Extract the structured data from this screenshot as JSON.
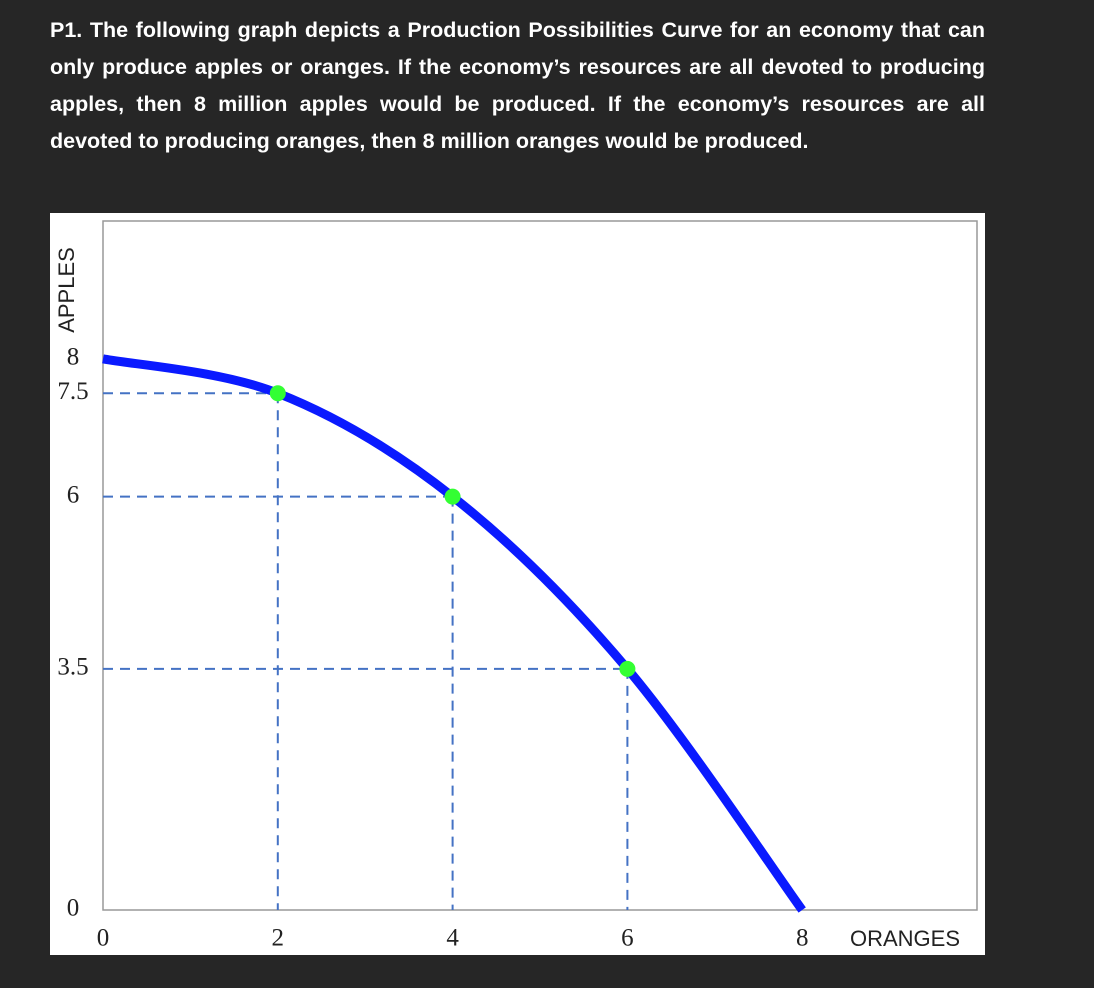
{
  "question": "P1. The following graph depicts a Production Possibilities Curve for an economy that can only produce apples or oranges. If the economy’s resources are all devoted to producing apples, then 8 million apples would be produced. If the economy’s resources are all devoted to producing oranges, then 8 million oranges would be produced.",
  "chart_data": {
    "type": "line",
    "x_label": "ORANGES",
    "y_label": "APPLES",
    "x": [
      0,
      2,
      4,
      6,
      8
    ],
    "series": [
      {
        "color": "#0a1aff",
        "values": [
          8,
          7.5,
          6,
          3.5,
          0
        ]
      }
    ],
    "points": {
      "color": "#33ff33",
      "x": [
        2,
        4,
        6
      ],
      "values": [
        7.5,
        6,
        3.5
      ]
    },
    "guide_color": "#4472c4",
    "xlim": [
      0,
      10
    ],
    "ylim": [
      0,
      10
    ],
    "xticks": [
      0,
      2,
      4,
      6,
      8
    ],
    "yticks": [
      0,
      3.5,
      6,
      7.5,
      8
    ]
  }
}
